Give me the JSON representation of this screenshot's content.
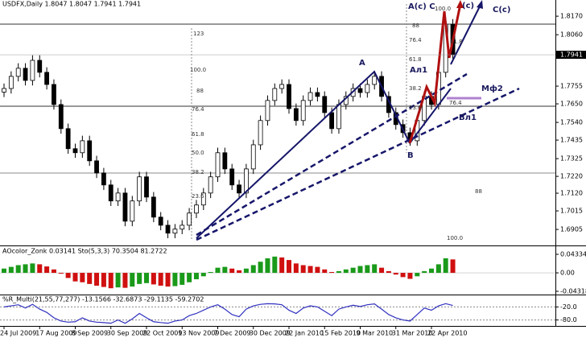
{
  "chart_data": [
    {
      "type": "candlestick",
      "title": "USDFX,Daily  1.8047 1.8047 1.7941 1.7941",
      "categories": [
        "24 Jul 2009",
        null,
        null,
        null,
        null,
        "17 Aug 2009",
        null,
        null,
        null,
        null,
        "8 Sep 2009",
        null,
        null,
        null,
        null,
        "30 Sep 2009",
        null,
        null,
        null,
        null,
        "22 Oct 2009",
        null,
        null,
        null,
        null,
        "13 Nov 2009",
        null,
        null,
        null,
        null,
        "7 Dec 2009",
        null,
        null,
        null,
        null,
        "30 Dec 2009",
        null,
        null,
        null,
        null,
        "22 Jan 2010",
        null,
        null,
        null,
        null,
        "15 Feb 2010",
        null,
        null,
        null,
        null,
        "9 Mar 2010",
        null,
        null,
        null,
        null,
        "31 Mar 2010",
        null,
        null,
        null,
        null,
        "22 Apr 2010",
        null,
        null,
        null
      ],
      "open": [
        1.772,
        1.7741,
        1.7813,
        1.7861,
        1.7789,
        1.7908,
        1.7837,
        1.7765,
        1.7646,
        1.7503,
        1.7384,
        1.736,
        1.7431,
        1.7312,
        1.724,
        1.7169,
        1.7074,
        1.7121,
        1.6954,
        1.7074,
        1.7217,
        1.7097,
        1.6978,
        1.693,
        1.6883,
        1.6907,
        1.693,
        1.7002,
        1.705,
        1.7121,
        1.7217,
        1.736,
        1.7264,
        1.7169,
        1.7121,
        1.7264,
        1.7407,
        1.7551,
        1.767,
        1.7741,
        1.7765,
        1.7622,
        1.7551,
        1.767,
        1.7717,
        1.7694,
        1.7598,
        1.7503,
        1.7646,
        1.7694,
        1.7741,
        1.7717,
        1.7765,
        1.7813,
        1.7694,
        1.7598,
        1.7527,
        1.7479,
        1.7431,
        1.7551,
        1.7694,
        1.7646,
        1.7837,
        1.8123
      ],
      "high": [
        1.7771,
        1.7843,
        1.7891,
        1.7891,
        1.7938,
        1.7938,
        1.7867,
        1.7795,
        1.7676,
        1.7533,
        1.7414,
        1.7461,
        1.7461,
        1.7342,
        1.727,
        1.7199,
        1.7151,
        1.7151,
        1.7104,
        1.7247,
        1.7247,
        1.7127,
        1.7008,
        1.696,
        1.6937,
        1.696,
        1.7032,
        1.708,
        1.7151,
        1.7247,
        1.739,
        1.739,
        1.7294,
        1.7199,
        1.7294,
        1.7437,
        1.7581,
        1.77,
        1.7771,
        1.7795,
        1.7795,
        1.7652,
        1.77,
        1.7747,
        1.7747,
        1.7724,
        1.7628,
        1.7676,
        1.7724,
        1.7771,
        1.7771,
        1.7795,
        1.7843,
        1.7843,
        1.7724,
        1.7628,
        1.7557,
        1.7509,
        1.7581,
        1.7724,
        1.7724,
        1.7867,
        1.8153,
        1.8153
      ],
      "low": [
        1.769,
        1.7711,
        1.7783,
        1.7759,
        1.7759,
        1.7807,
        1.7735,
        1.7616,
        1.7473,
        1.7354,
        1.733,
        1.733,
        1.7282,
        1.721,
        1.7139,
        1.7044,
        1.7044,
        1.6924,
        1.6924,
        1.7044,
        1.7067,
        1.6948,
        1.69,
        1.6853,
        1.6853,
        1.6877,
        1.69,
        1.6972,
        1.702,
        1.7091,
        1.7187,
        1.7234,
        1.7139,
        1.7091,
        1.7091,
        1.7234,
        1.7377,
        1.7521,
        1.764,
        1.7711,
        1.7592,
        1.7521,
        1.7521,
        1.764,
        1.7664,
        1.7568,
        1.7473,
        1.7473,
        1.7616,
        1.7664,
        1.7687,
        1.7687,
        1.7735,
        1.7664,
        1.7568,
        1.7497,
        1.7449,
        1.7401,
        1.7401,
        1.7521,
        1.7616,
        1.7616,
        1.7807,
        1.7911
      ],
      "close": [
        1.7741,
        1.7813,
        1.7861,
        1.7789,
        1.7908,
        1.7837,
        1.7765,
        1.7646,
        1.7503,
        1.7384,
        1.736,
        1.7431,
        1.7312,
        1.724,
        1.7169,
        1.7074,
        1.7121,
        1.6954,
        1.7074,
        1.7217,
        1.7097,
        1.6978,
        1.693,
        1.6883,
        1.6907,
        1.693,
        1.7002,
        1.705,
        1.7121,
        1.7217,
        1.736,
        1.7264,
        1.7169,
        1.7121,
        1.7264,
        1.7407,
        1.7551,
        1.767,
        1.7741,
        1.7765,
        1.7622,
        1.7551,
        1.767,
        1.7717,
        1.7694,
        1.7598,
        1.7503,
        1.7646,
        1.7694,
        1.7741,
        1.7717,
        1.7765,
        1.7813,
        1.7694,
        1.7598,
        1.7527,
        1.7479,
        1.7431,
        1.7551,
        1.7694,
        1.7646,
        1.7837,
        1.8123,
        1.7941
      ],
      "ylim": [
        1.681,
        1.8266
      ],
      "yticks": [
        {
          "value": 1.817,
          "label": "1.8170"
        },
        {
          "value": 1.806,
          "label": "1.8060"
        },
        {
          "value": 1.7755,
          "label": "1.7755"
        },
        {
          "value": 1.765,
          "label": "1.7650"
        },
        {
          "value": 1.754,
          "label": "1.7540"
        },
        {
          "value": 1.7435,
          "label": "1.7435"
        },
        {
          "value": 1.7325,
          "label": "1.7325"
        },
        {
          "value": 1.722,
          "label": "1.7220"
        },
        {
          "value": 1.712,
          "label": "1.7120"
        },
        {
          "value": 1.7015,
          "label": "1.7015"
        },
        {
          "value": 1.6905,
          "label": "1.6905"
        }
      ],
      "current_price": 1.7941,
      "annotations": [
        "A",
        "B",
        "Ал1",
        "Вл1",
        "Мф2",
        "A(c) C",
        "(c)",
        "C(c)"
      ],
      "fib_labels": [
        "123",
        "100.0",
        "88",
        "76.4",
        "61.8",
        "50.0",
        "38.2",
        "23.6",
        "88",
        "76.4",
        "61.8",
        "38.2",
        "23.6",
        "100.0",
        "61.8",
        "76.4",
        "88",
        "100.0"
      ]
    },
    {
      "type": "histogram",
      "title": "AOcolor_Zonk 0.03141  Sto(5,3,3) 70.3504 81.2722",
      "values": [
        0.01,
        0.014,
        0.018,
        0.02,
        0.022,
        0.02,
        0.015,
        0.008,
        -0.002,
        -0.012,
        -0.02,
        -0.022,
        -0.026,
        -0.03,
        -0.033,
        -0.036,
        -0.034,
        -0.035,
        -0.032,
        -0.026,
        -0.024,
        -0.027,
        -0.03,
        -0.032,
        -0.031,
        -0.028,
        -0.022,
        -0.015,
        -0.008,
        0.002,
        0.012,
        0.014,
        0.01,
        0.006,
        0.01,
        0.018,
        0.026,
        0.034,
        0.038,
        0.036,
        0.03,
        0.022,
        0.018,
        0.016,
        0.014,
        0.008,
        0.002,
        0.004,
        0.008,
        0.012,
        0.016,
        0.018,
        0.02,
        0.012,
        0.004,
        -0.004,
        -0.01,
        -0.014,
        -0.008,
        0.004,
        0.01,
        0.02,
        0.034,
        0.03141
      ],
      "up_color": "#1a9a1a",
      "down_color": "#d01010",
      "ylim": [
        -0.04318,
        0.04334
      ],
      "yticks": [
        0.04334,
        {
          "value": 0,
          "label": "0.00"
        },
        -0.04318
      ]
    },
    {
      "type": "line",
      "title": "%R_Multi(21,55,77,277) -13.1566 -32.6873 -29.1135 -59.2702",
      "values": [
        -20,
        -15,
        -10,
        -25,
        -8,
        -30,
        -45,
        -70,
        -85,
        -90,
        -88,
        -70,
        -85,
        -90,
        -92,
        -95,
        -80,
        -95,
        -75,
        -50,
        -70,
        -88,
        -92,
        -95,
        -85,
        -80,
        -60,
        -50,
        -35,
        -20,
        -10,
        -30,
        -55,
        -65,
        -30,
        -15,
        -8,
        -5,
        -6,
        -10,
        -35,
        -50,
        -25,
        -15,
        -20,
        -40,
        -60,
        -30,
        -20,
        -12,
        -18,
        -10,
        -6,
        -30,
        -55,
        -70,
        -80,
        -85,
        -55,
        -25,
        -35,
        -15,
        -5,
        -13.1566
      ],
      "color": "#3030c0",
      "ylim": [
        -100,
        0
      ],
      "yticks": [
        {
          "value": -20,
          "label": "-20.0"
        },
        {
          "value": -80,
          "label": "-80.0"
        }
      ]
    }
  ]
}
